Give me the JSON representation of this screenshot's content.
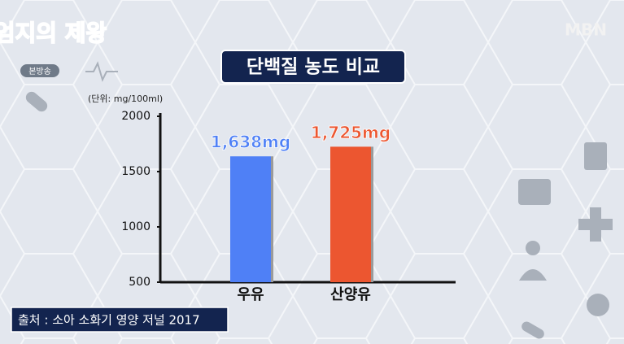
{
  "broadcast": {
    "program": "엄지의 제왕",
    "badge": "본방송",
    "channel": "MBN"
  },
  "chart_data": {
    "type": "bar",
    "title": "단백질 농도 비교",
    "y_label": "(단위: mg/100ml)",
    "categories": [
      "우유",
      "산양유"
    ],
    "values": [
      1638,
      1725
    ],
    "value_labels": [
      "1,638mg",
      "1,725mg"
    ],
    "colors": [
      "#4f80f6",
      "#ec5630"
    ],
    "ylim": [
      500,
      2000
    ],
    "yticks": [
      500,
      1000,
      1500,
      2000
    ],
    "source": "출처 : 소아 소화기 영양 저널 2017"
  }
}
